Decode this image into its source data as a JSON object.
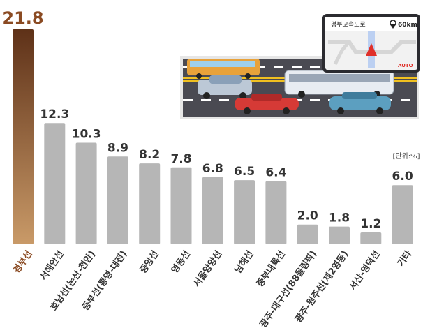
{
  "chart_data": {
    "type": "bar",
    "title": "",
    "xlabel": "",
    "ylabel": "",
    "unit_note": "[단위:%]",
    "ylim": [
      0,
      21.8
    ],
    "grid": false,
    "legend": "none",
    "categories": [
      "경부선",
      "서해안선",
      "호남선(논산-천안)",
      "중부선(통영-대전)",
      "중앙선",
      "영동선",
      "서울양양선",
      "남해선",
      "중부내륙선",
      "광주-대구선(88올림픽)",
      "광주-원주선(제2영동)",
      "서산-영덕선",
      "기타"
    ],
    "values": [
      21.8,
      12.3,
      10.3,
      8.9,
      8.2,
      7.8,
      6.8,
      6.5,
      6.4,
      2.0,
      1.8,
      1.2,
      6.0
    ],
    "value_labels": [
      "21.8",
      "12.3",
      "10.3",
      "8.9",
      "8.2",
      "7.8",
      "6.8",
      "6.5",
      "6.4",
      "2.0",
      "1.8",
      "1.2",
      "6.0"
    ],
    "highlight_index": 0,
    "colors": {
      "highlight": "#7b4a2a",
      "highlight_top": "#5e3118",
      "bar": "#b6b6b6",
      "label": "#333333",
      "highlight_label": "#8a4a22"
    }
  },
  "illustration": {
    "nav_road_name": "경부고속도로",
    "nav_speed": "60km",
    "nav_mode": "AUTO",
    "colors": {
      "road": "#4a4a52",
      "lane": "#f0c020",
      "bus": "#e8a23a",
      "coach": "#e8ecf2",
      "car_red": "#d63a36",
      "car_blue": "#5c9fc0",
      "car_silver": "#bcc8d6"
    }
  }
}
